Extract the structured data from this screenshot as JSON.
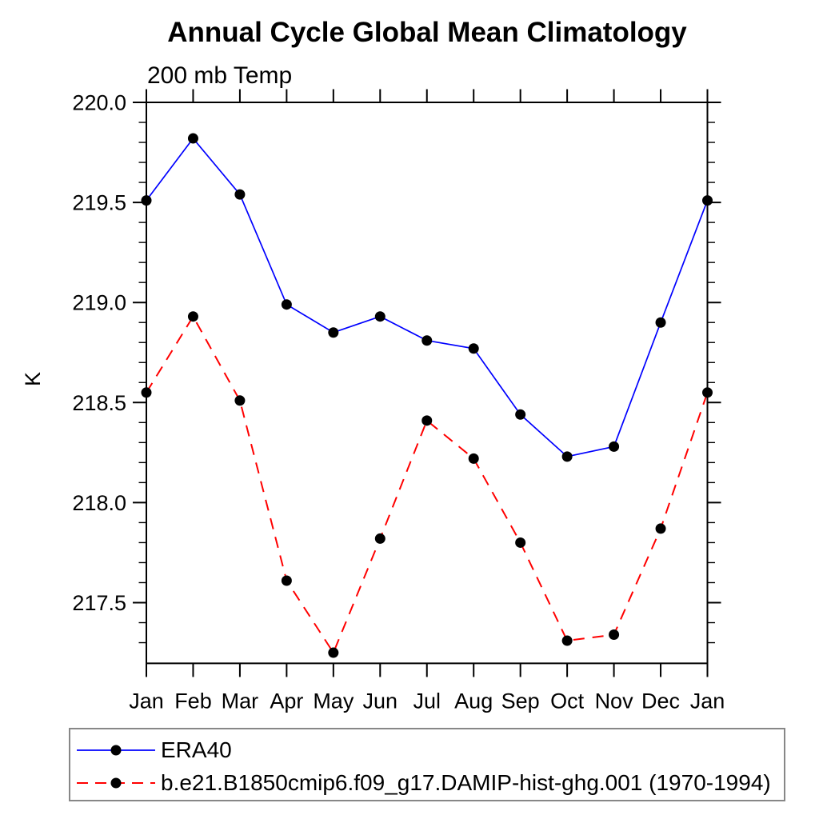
{
  "chart_data": {
    "type": "line",
    "title": "Annual Cycle Global Mean Climatology",
    "subtitle": "200 mb Temp",
    "ylabel": "K",
    "xlabel": "",
    "categories": [
      "Jan",
      "Feb",
      "Mar",
      "Apr",
      "May",
      "Jun",
      "Jul",
      "Aug",
      "Sep",
      "Oct",
      "Nov",
      "Dec",
      "Jan"
    ],
    "ylim": [
      217.2,
      220.0
    ],
    "ytick_major": [
      217.5,
      218.0,
      218.5,
      219.0,
      219.5,
      220.0
    ],
    "ytick_minor_step": 0.1,
    "grid": false,
    "legend_position": "bottom-left",
    "axis_color": "#000000",
    "marker_color": "#000000",
    "series": [
      {
        "name": "ERA40",
        "color": "#0000FF",
        "line_style": "solid",
        "marker": "filled-circle",
        "values": [
          219.51,
          219.82,
          219.54,
          218.99,
          218.85,
          218.93,
          218.81,
          218.77,
          218.44,
          218.23,
          218.28,
          218.9,
          219.51
        ]
      },
      {
        "name": "b.e21.B1850cmip6.f09_g17.DAMIP-hist-ghg.001 (1970-1994)",
        "color": "#FF0000",
        "line_style": "dashed",
        "marker": "filled-circle",
        "values": [
          218.55,
          218.93,
          218.51,
          217.61,
          217.25,
          217.82,
          218.41,
          218.22,
          217.8,
          217.31,
          217.34,
          217.87,
          218.55
        ]
      }
    ]
  }
}
